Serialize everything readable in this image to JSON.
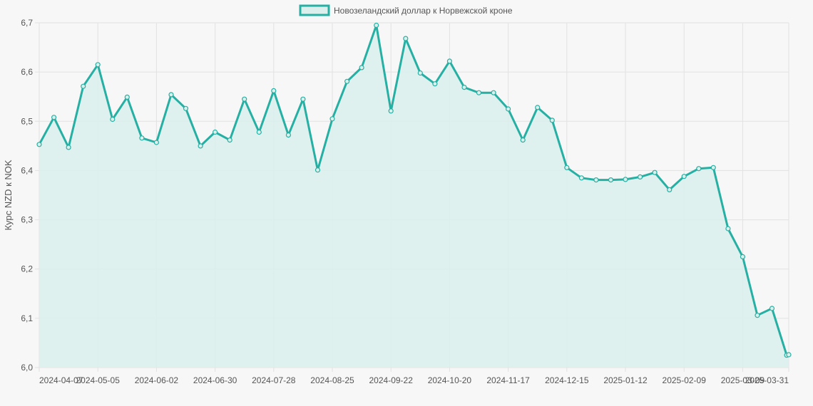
{
  "chart_data": {
    "type": "area",
    "legend_position": "top-center",
    "grid": true,
    "ylabel": "Курс NZD к NOK",
    "ylim": [
      6.0,
      6.7
    ],
    "y_ticks": [
      "6,0",
      "6,1",
      "6,2",
      "6,3",
      "6,4",
      "6,5",
      "6,6",
      "6,7"
    ],
    "x_tick_labels": [
      "2024-04-07",
      "2024-05-05",
      "2024-06-02",
      "2024-06-30",
      "2024-07-28",
      "2024-08-25",
      "2024-09-22",
      "2024-10-20",
      "2024-11-17",
      "2024-12-15",
      "2025-01-12",
      "2025-02-09",
      "2025-03-09",
      "2025-03-31"
    ],
    "colors": {
      "line": "#26b0a4",
      "fill": "#dbf0ec",
      "grid": "#e2e2e2",
      "background": "#f7f7f7"
    },
    "series": [
      {
        "name": "Новозеландский доллар к Норвежской кроне",
        "x": [
          "2024-04-07",
          "2024-04-14",
          "2024-04-21",
          "2024-04-28",
          "2024-05-05",
          "2024-05-12",
          "2024-05-19",
          "2024-05-26",
          "2024-06-02",
          "2024-06-09",
          "2024-06-16",
          "2024-06-23",
          "2024-06-30",
          "2024-07-07",
          "2024-07-14",
          "2024-07-21",
          "2024-07-28",
          "2024-08-04",
          "2024-08-11",
          "2024-08-18",
          "2024-08-25",
          "2024-09-01",
          "2024-09-08",
          "2024-09-15",
          "2024-09-22",
          "2024-09-29",
          "2024-10-06",
          "2024-10-13",
          "2024-10-20",
          "2024-10-27",
          "2024-11-03",
          "2024-11-10",
          "2024-11-17",
          "2024-11-24",
          "2024-12-01",
          "2024-12-08",
          "2024-12-15",
          "2024-12-22",
          "2024-12-29",
          "2025-01-05",
          "2025-01-12",
          "2025-01-19",
          "2025-01-26",
          "2025-02-02",
          "2025-02-09",
          "2025-02-16",
          "2025-02-23",
          "2025-03-02",
          "2025-03-09",
          "2025-03-16",
          "2025-03-23",
          "2025-03-30",
          "2025-03-31"
        ],
        "values": [
          6.453,
          6.508,
          6.447,
          6.571,
          6.615,
          6.504,
          6.549,
          6.466,
          6.457,
          6.554,
          6.526,
          6.45,
          6.478,
          6.462,
          6.545,
          6.478,
          6.562,
          6.472,
          6.545,
          6.401,
          6.505,
          6.581,
          6.609,
          6.695,
          6.521,
          6.668,
          6.598,
          6.576,
          6.622,
          6.569,
          6.558,
          6.558,
          6.525,
          6.462,
          6.528,
          6.502,
          6.406,
          6.385,
          6.381,
          6.381,
          6.382,
          6.387,
          6.396,
          6.361,
          6.388,
          6.404,
          6.406,
          6.282,
          6.225,
          6.106,
          6.12,
          6.025,
          6.026
        ]
      }
    ]
  }
}
